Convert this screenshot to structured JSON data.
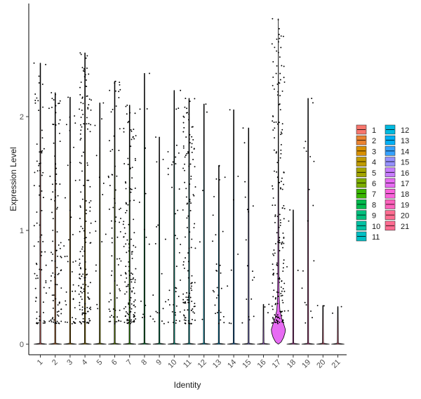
{
  "chart_data": {
    "type": "violin",
    "title": "",
    "xlabel": "Identity",
    "ylabel": "Expression Level",
    "ylim": [
      -0.08,
      2.92
    ],
    "yticks": [
      0,
      1,
      2
    ],
    "grid": false,
    "legend_position": "right",
    "categories": [
      "1",
      "2",
      "3",
      "4",
      "5",
      "6",
      "7",
      "8",
      "9",
      "10",
      "11",
      "12",
      "13",
      "14",
      "15",
      "16",
      "17",
      "18",
      "19",
      "20",
      "21"
    ],
    "colors": [
      "#F8766D",
      "#EA8331",
      "#D89000",
      "#C09B00",
      "#A3A500",
      "#7CAE00",
      "#39B600",
      "#00BB4E",
      "#00BF7D",
      "#00C1A3",
      "#00BFC4",
      "#00BAE0",
      "#00B0F6",
      "#35A2FF",
      "#9590FF",
      "#C77CFF",
      "#E76BF3",
      "#FA62DB",
      "#FF62BC",
      "#FF6C91",
      "#FF6C91"
    ],
    "violin_max": [
      2.47,
      2.21,
      2.17,
      2.56,
      2.12,
      2.31,
      2.1,
      2.38,
      1.82,
      2.23,
      2.16,
      2.11,
      1.57,
      2.06,
      1.9,
      0.35,
      2.86,
      1.18,
      2.16,
      0.34,
      0.33
    ],
    "point_count": [
      80,
      100,
      40,
      160,
      15,
      75,
      140,
      15,
      18,
      40,
      130,
      5,
      30,
      8,
      18,
      3,
      190,
      5,
      18,
      2,
      2
    ],
    "highlighted_density": {
      "category": "17",
      "profile": [
        [
          0.0,
          0.0
        ],
        [
          0.02,
          0.4
        ],
        [
          0.06,
          0.75
        ],
        [
          0.1,
          0.95
        ],
        [
          0.13,
          1.0
        ],
        [
          0.17,
          0.8
        ],
        [
          0.22,
          0.5
        ],
        [
          0.3,
          0.22
        ],
        [
          0.4,
          0.12
        ],
        [
          0.6,
          0.08
        ],
        [
          0.9,
          0.06
        ],
        [
          1.2,
          0.05
        ],
        [
          1.6,
          0.03
        ],
        [
          2.2,
          0.015
        ],
        [
          2.86,
          0.0
        ]
      ]
    }
  }
}
